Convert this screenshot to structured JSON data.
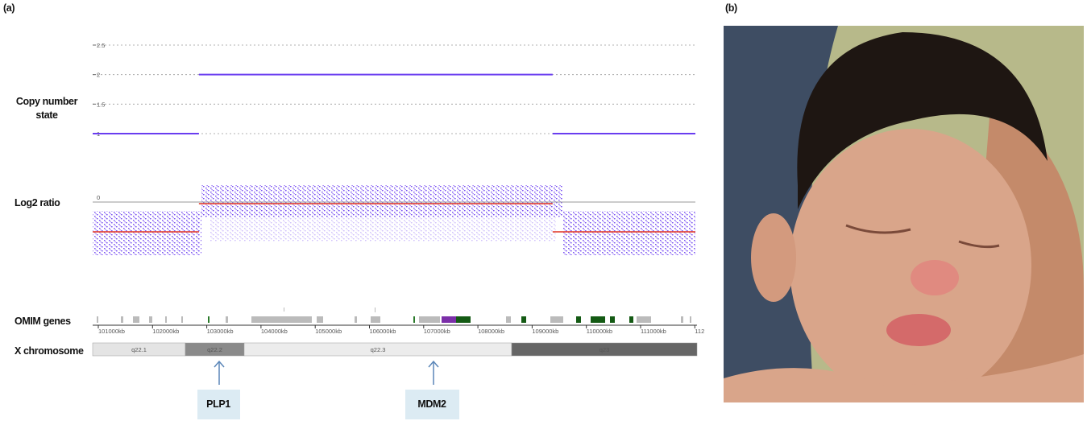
{
  "panel_labels": [
    "(a)",
    "(b)"
  ],
  "tracks": {
    "copy_number_label": [
      "Copy number",
      "state"
    ],
    "log2_label": "Log2 ratio",
    "omim_label": "OMIM genes",
    "chromosome_label": "X chromosome"
  },
  "copy_number": {
    "ticks": [
      2.5,
      2,
      1.5,
      1
    ],
    "segments": [
      {
        "start_kb": 100700,
        "end_kb": 102710,
        "state": 1
      },
      {
        "start_kb": 102710,
        "end_kb": 109400,
        "state": 2
      },
      {
        "start_kb": 109400,
        "end_kb": 112100,
        "state": 1
      }
    ]
  },
  "log2": {
    "ticks": [
      0
    ]
  },
  "positions": [
    "101000kb",
    "102000kb",
    "103000kb",
    "104000kb",
    "105000kb",
    "106000kb",
    "107000kb",
    "108000kb",
    "109000kb",
    "110000kb",
    "111000kb",
    "112"
  ],
  "bands": [
    "q22.1",
    "q22.2",
    "q22.3",
    "q23"
  ],
  "callouts": [
    "PLP1",
    "MDM2"
  ]
}
